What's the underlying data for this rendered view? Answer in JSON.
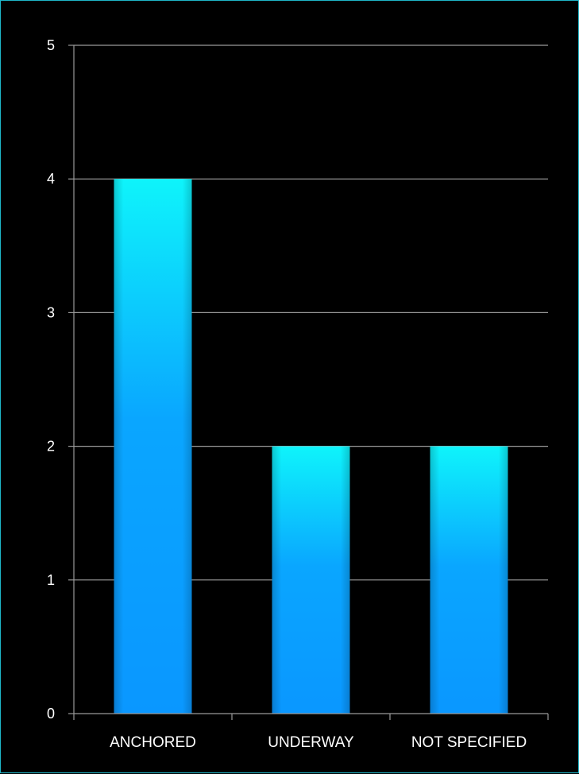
{
  "chart_data": {
    "type": "bar",
    "title": "",
    "xlabel": "",
    "ylabel": "",
    "categories": [
      "ANCHORED",
      "UNDERWAY",
      "NOT SPECIFIED"
    ],
    "values": [
      4,
      2,
      2
    ],
    "ylim": [
      0,
      5
    ],
    "yticks": [
      0,
      1,
      2,
      3,
      4,
      5
    ],
    "grid": true,
    "legend": "none",
    "colors": {
      "background": "#000000",
      "frame": "#1fb6c9",
      "bar_top": "#0ef4fb",
      "bar_bottom": "#0a97ff",
      "gridline": "#9a9a9a",
      "text": "#ffffff"
    }
  }
}
